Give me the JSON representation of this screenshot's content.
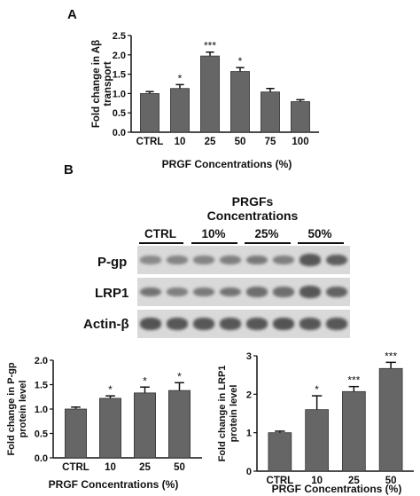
{
  "panels": {
    "A": "A",
    "B": "B"
  },
  "colors": {
    "bar": "#666666",
    "axis": "#111111",
    "blot_bg": "#d8d8d8",
    "band": "#3a3a3a"
  },
  "chart_data": [
    {
      "id": "A",
      "type": "bar",
      "categories": [
        "CTRL",
        "10",
        "25",
        "50",
        "75",
        "100"
      ],
      "values": [
        1.0,
        1.13,
        1.97,
        1.57,
        1.04,
        0.79
      ],
      "errors": [
        0.05,
        0.1,
        0.1,
        0.1,
        0.09,
        0.05
      ],
      "significance": [
        "",
        "*",
        "***",
        "*",
        "",
        ""
      ],
      "ylabel": "Fold change in Aβ transport",
      "ylabel_lines": [
        "Fold change in Aβ",
        "transport"
      ],
      "xlabel": "PRGF Concentrations (%)",
      "ylim": [
        0,
        2.5
      ],
      "yticks": [
        "0.0",
        "0.5",
        "1.0",
        "1.5",
        "2.0",
        "2.5"
      ],
      "grid": false
    },
    {
      "id": "B-left",
      "type": "bar",
      "categories": [
        "CTRL",
        "10",
        "25",
        "50"
      ],
      "values": [
        1.0,
        1.22,
        1.33,
        1.38
      ],
      "errors": [
        0.04,
        0.05,
        0.12,
        0.16
      ],
      "significance": [
        "",
        "*",
        "*",
        "*"
      ],
      "ylabel": "Fold change in P-gp protein level",
      "ylabel_lines": [
        "Fold change in P-gp",
        "protein level"
      ],
      "xlabel": "PRGF Concentrations (%)",
      "ylim": [
        0,
        2.0
      ],
      "yticks": [
        "0.0",
        "0.5",
        "1.0",
        "1.5",
        "2.0"
      ],
      "grid": false
    },
    {
      "id": "B-right",
      "type": "bar",
      "categories": [
        "CTRL",
        "10",
        "25",
        "50"
      ],
      "values": [
        1.0,
        1.6,
        2.07,
        2.67
      ],
      "errors": [
        0.04,
        0.36,
        0.13,
        0.16
      ],
      "significance": [
        "",
        "*",
        "***",
        "***"
      ],
      "ylabel": "Fold change in LRP1 protein level",
      "ylabel_lines": [
        "Fold change in LRP1",
        "protein level"
      ],
      "xlabel": "PRGF Concentrations (%)",
      "ylim": [
        0,
        3
      ],
      "yticks": [
        "0",
        "1",
        "2",
        "3"
      ],
      "grid": false
    }
  ],
  "blot": {
    "header_lines": [
      "PRGFs",
      "Concentrations"
    ],
    "groups": [
      "CTRL",
      "10%",
      "25%",
      "50%"
    ],
    "rows": [
      {
        "label": "P-gp",
        "band_levels": [
          0.35,
          0.4,
          0.4,
          0.45,
          0.5,
          0.45,
          0.8,
          0.75
        ]
      },
      {
        "label": "LRP1",
        "band_levels": [
          0.55,
          0.45,
          0.5,
          0.55,
          0.6,
          0.6,
          0.8,
          0.7
        ]
      },
      {
        "label": "Actin-β",
        "band_levels": [
          0.85,
          0.8,
          0.8,
          0.8,
          0.8,
          0.85,
          0.8,
          0.8
        ]
      }
    ]
  }
}
